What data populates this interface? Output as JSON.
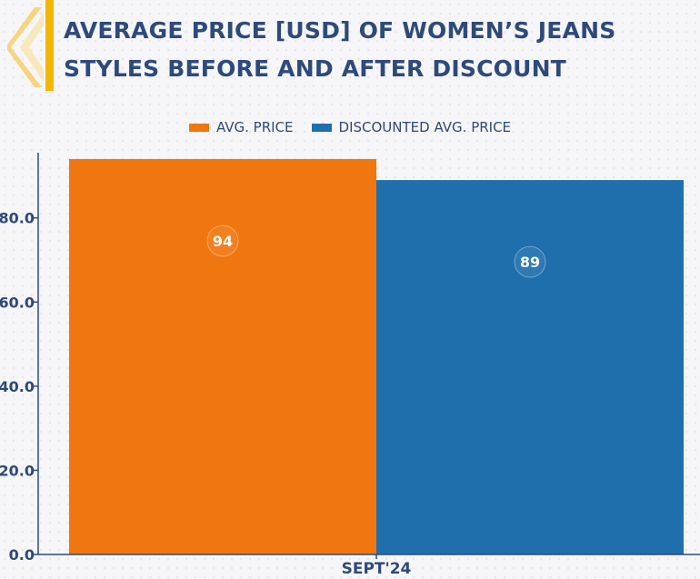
{
  "chart_data": {
    "type": "bar",
    "title": "AVERAGE PRICE [USD] OF WOMEN’S JEANS STYLES BEFORE AND AFTER DISCOUNT",
    "categories": [
      "SEPT'24"
    ],
    "series": [
      {
        "name": "AVG. PRICE",
        "values": [
          94
        ],
        "color": "#f0760f"
      },
      {
        "name": "DISCOUNTED AVG. PRICE",
        "values": [
          89
        ],
        "color": "#1f6fad"
      }
    ],
    "data_labels": [
      "94",
      "89"
    ],
    "y_ticks": [
      "0.0",
      "20.0",
      "40.0",
      "60.0",
      "80.0"
    ],
    "y_tick_values": [
      0,
      20,
      40,
      60,
      80
    ],
    "ylim": [
      0,
      95.5
    ],
    "xlabel": "",
    "ylabel": "",
    "legend_position": "top-center",
    "grid": false
  },
  "colors": {
    "title": "#2e4a7a",
    "accent_bar": "#f2b705",
    "axis": "#2e4a7a",
    "background": "#f6f6f8"
  },
  "icons": {
    "logo": "chevron-logo-icon"
  }
}
